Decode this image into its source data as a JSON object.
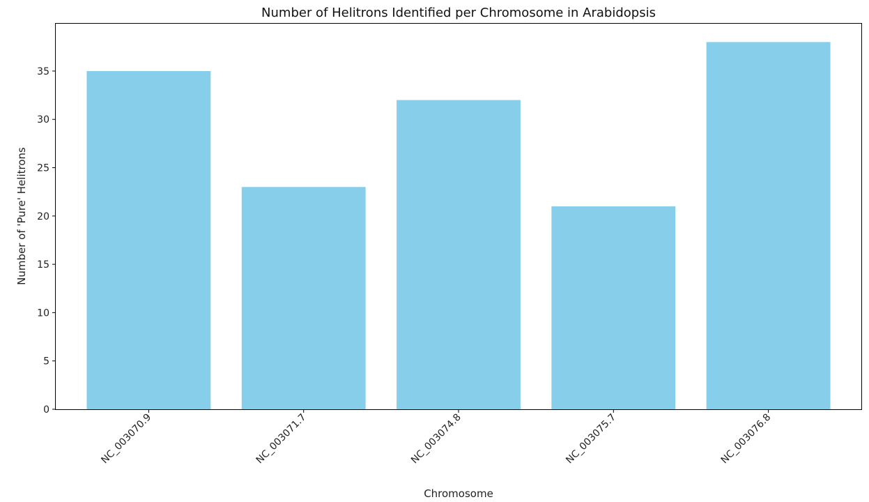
{
  "chart_data": {
    "type": "bar",
    "title": "Number of Helitrons Identified per Chromosome in Arabidopsis",
    "xlabel": "Chromosome",
    "ylabel": "Number of 'Pure' Helitrons",
    "categories": [
      "NC_003070.9",
      "NC_003071.7",
      "NC_003074.8",
      "NC_003075.7",
      "NC_003076.8"
    ],
    "values": [
      35,
      23,
      32,
      21,
      38
    ],
    "ylim": [
      0,
      39.9
    ],
    "yticks": [
      0,
      5,
      10,
      15,
      20,
      25,
      30,
      35
    ],
    "bar_color": "#87CEEB",
    "grid": false,
    "legend": "none"
  }
}
